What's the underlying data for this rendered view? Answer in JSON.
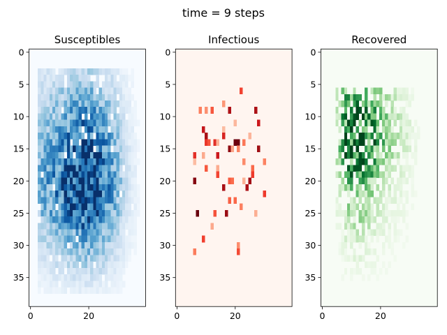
{
  "chart_data": {
    "type": "heatmap",
    "suptitle": "time = 9 steps",
    "panels": [
      {
        "title": "Susceptibles",
        "colormap": "Blues",
        "field": {
          "seed": 11,
          "occupancy": {
            "row_range": [
              3,
              37
            ],
            "col_range": [
              3,
              37
            ]
          },
          "row_profile": [
            [
              3,
              0.3
            ],
            [
              8,
              0.55
            ],
            [
              14,
              0.85
            ],
            [
              19,
              1.0
            ],
            [
              24,
              0.95
            ],
            [
              28,
              0.6
            ],
            [
              33,
              0.3
            ],
            [
              37,
              0.1
            ]
          ],
          "col_profile": [
            [
              3,
              0.45
            ],
            [
              8,
              0.6
            ],
            [
              14,
              0.85
            ],
            [
              19,
              1.0
            ],
            [
              24,
              0.8
            ],
            [
              29,
              0.5
            ],
            [
              33,
              0.2
            ],
            [
              37,
              0.05
            ]
          ],
          "noise": 0.45,
          "sparsity": 0.04
        },
        "xticks": [
          0,
          20
        ],
        "yticks": [
          0,
          5,
          10,
          15,
          20,
          25,
          30,
          35
        ]
      },
      {
        "title": "Infectious",
        "colormap": "Reds",
        "field": {
          "seed": 27,
          "occupancy": {
            "row_range": [
              6,
              31
            ],
            "col_range": [
              6,
              30
            ]
          },
          "row_profile": [
            [
              6,
              0.05
            ],
            [
              10,
              0.1
            ],
            [
              14,
              0.2
            ],
            [
              18,
              0.15
            ],
            [
              22,
              0.08
            ],
            [
              26,
              0.05
            ],
            [
              30,
              0.03
            ]
          ],
          "col_profile": [
            [
              6,
              0.6
            ],
            [
              12,
              1.0
            ],
            [
              18,
              1.0
            ],
            [
              24,
              0.7
            ],
            [
              30,
              0.3
            ]
          ],
          "noise": 1.0,
          "sparsity": 0.0
        },
        "xticks": [
          0,
          20
        ],
        "yticks": [
          0,
          5,
          10,
          15,
          20,
          25,
          30,
          35
        ]
      },
      {
        "title": "Recovered",
        "colormap": "Greens",
        "field": {
          "seed": 53,
          "occupancy": {
            "row_range": [
              6,
              35
            ],
            "col_range": [
              5,
              33
            ]
          },
          "row_profile": [
            [
              6,
              0.6
            ],
            [
              10,
              0.85
            ],
            [
              14,
              1.0
            ],
            [
              18,
              0.75
            ],
            [
              22,
              0.45
            ],
            [
              26,
              0.3
            ],
            [
              30,
              0.15
            ],
            [
              35,
              0.05
            ]
          ],
          "col_profile": [
            [
              5,
              0.3
            ],
            [
              8,
              0.8
            ],
            [
              12,
              1.0
            ],
            [
              16,
              0.8
            ],
            [
              20,
              0.5
            ],
            [
              26,
              0.25
            ],
            [
              33,
              0.05
            ]
          ],
          "noise": 0.6,
          "sparsity": 0.35
        },
        "xticks": [
          0,
          20
        ],
        "yticks": [
          0,
          5,
          10,
          15,
          20,
          25,
          30,
          35
        ]
      }
    ],
    "grid": {
      "rows": 40,
      "cols": 40
    },
    "xlim": [
      -0.5,
      39.5
    ],
    "ylim": [
      39.5,
      -0.5
    ]
  }
}
